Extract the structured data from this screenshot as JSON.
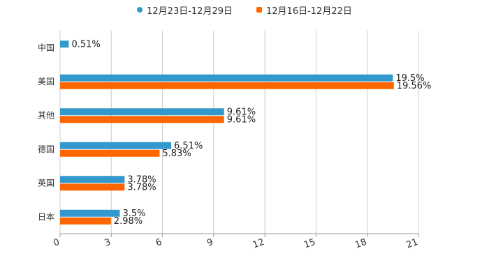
{
  "chart_data": {
    "type": "bar",
    "orientation": "horizontal",
    "categories": [
      "中国",
      "美国",
      "其他",
      "德国",
      "英国",
      "日本"
    ],
    "series": [
      {
        "name": "12月23日-12月29日",
        "values": [
          0.51,
          19.5,
          9.61,
          6.51,
          3.78,
          3.5
        ],
        "labels": [
          "0.51%",
          "19.5%",
          "9.61%",
          "6.51%",
          "3.78%",
          "3.5%"
        ],
        "color": "#3399CC",
        "marker": "circle"
      },
      {
        "name": "12月16日-12月22日",
        "values": [
          null,
          19.56,
          9.61,
          5.83,
          3.78,
          2.98
        ],
        "labels": [
          "",
          "19.56%",
          "9.61%",
          "5.83%",
          "3.78%",
          "2.98%"
        ],
        "color": "#FF6600",
        "marker": "square"
      }
    ],
    "xlim": [
      0,
      21
    ],
    "xticks": [
      "0",
      "3",
      "6",
      "9",
      "12",
      "15",
      "18",
      "21"
    ],
    "grid": true,
    "legend": "top-center",
    "title": "",
    "xlabel": "",
    "ylabel": ""
  }
}
